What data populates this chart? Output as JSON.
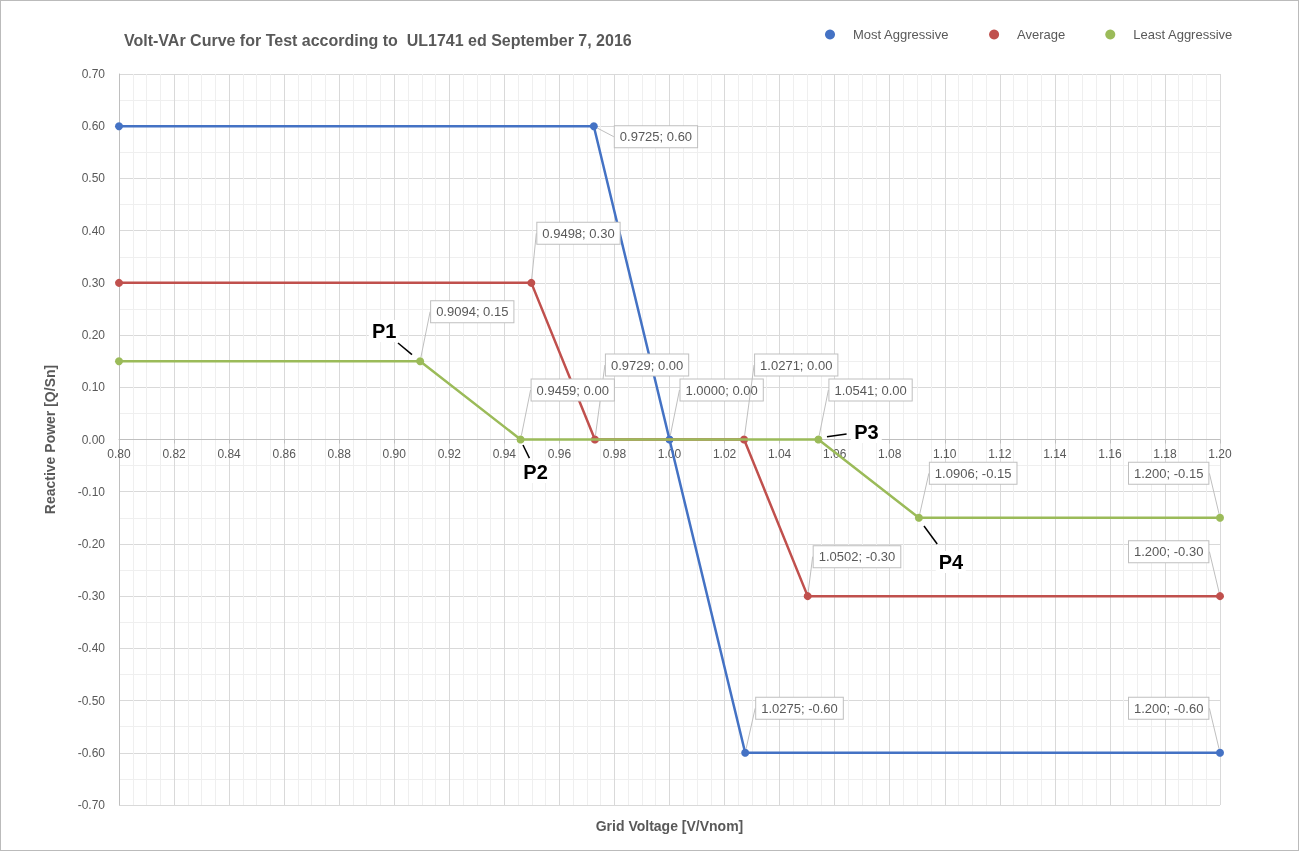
{
  "chart_data": {
    "type": "line",
    "title": "Volt-VAr Curve for Test according to  UL1741 ed September 7, 2016",
    "xlabel": "Grid Voltage [V/Vnom]",
    "ylabel": "Reactive Power [Q/Sn]",
    "xlim": [
      0.8,
      1.2
    ],
    "ylim": [
      -0.7,
      0.7
    ],
    "xticks": [
      {
        "value": 0.8,
        "label": "0.80"
      },
      {
        "value": 0.82,
        "label": "0.82"
      },
      {
        "value": 0.84,
        "label": "0.84"
      },
      {
        "value": 0.86,
        "label": "0.86"
      },
      {
        "value": 0.88,
        "label": "0.88"
      },
      {
        "value": 0.9,
        "label": "0.90"
      },
      {
        "value": 0.92,
        "label": "0.92"
      },
      {
        "value": 0.94,
        "label": "0.94"
      },
      {
        "value": 0.96,
        "label": "0.96"
      },
      {
        "value": 0.98,
        "label": "0.98"
      },
      {
        "value": 1.0,
        "label": "1.00"
      },
      {
        "value": 1.02,
        "label": "1.02"
      },
      {
        "value": 1.04,
        "label": "1.04"
      },
      {
        "value": 1.06,
        "label": "1.06"
      },
      {
        "value": 1.08,
        "label": "1.08"
      },
      {
        "value": 1.1,
        "label": "1.10"
      },
      {
        "value": 1.12,
        "label": "1.12"
      },
      {
        "value": 1.14,
        "label": "1.14"
      },
      {
        "value": 1.16,
        "label": "1.16"
      },
      {
        "value": 1.18,
        "label": "1.18"
      },
      {
        "value": 1.2,
        "label": "1.20"
      }
    ],
    "yticks": [
      {
        "value": -0.7,
        "label": "-0.70"
      },
      {
        "value": -0.6,
        "label": "-0.60"
      },
      {
        "value": -0.5,
        "label": "-0.50"
      },
      {
        "value": -0.4,
        "label": "-0.40"
      },
      {
        "value": -0.3,
        "label": "-0.30"
      },
      {
        "value": -0.2,
        "label": "-0.20"
      },
      {
        "value": -0.1,
        "label": "-0.10"
      },
      {
        "value": 0,
        "label": "0.00"
      },
      {
        "value": 0.1,
        "label": "0.10"
      },
      {
        "value": 0.2,
        "label": "0.20"
      },
      {
        "value": 0.3,
        "label": "0.30"
      },
      {
        "value": 0.4,
        "label": "0.40"
      },
      {
        "value": 0.5,
        "label": "0.50"
      },
      {
        "value": 0.6,
        "label": "0.60"
      },
      {
        "value": 0.7,
        "label": "0.70"
      }
    ],
    "grid": true,
    "legend": "top right",
    "marker": "circle",
    "line_style": "solid",
    "series": [
      {
        "name": "Most Aggressive",
        "color": "#4472c4",
        "x": [
          0.8,
          0.9725,
          1.0,
          1.0275,
          1.2
        ],
        "values": [
          0.6,
          0.6,
          0.0,
          -0.6,
          -0.6
        ],
        "value_labels": [
          null,
          "0.9725; 0.60",
          "1.0000; 0.00",
          "1.0275; -0.60",
          "1.200; -0.60"
        ]
      },
      {
        "name": "Average",
        "color": "#c0504d",
        "x": [
          0.8,
          0.9498,
          0.9729,
          1.0271,
          1.0502,
          1.2
        ],
        "values": [
          0.3,
          0.3,
          0.0,
          0.0,
          -0.3,
          -0.3
        ],
        "value_labels": [
          null,
          "0.9498; 0.30",
          "0.9729; 0.00",
          "1.0271; 0.00",
          "1.0502; -0.30",
          "1.200; -0.30"
        ]
      },
      {
        "name": "Least Aggressive",
        "color": "#9bbb59",
        "x": [
          0.8,
          0.9094,
          0.9459,
          1.0541,
          1.0906,
          1.2
        ],
        "values": [
          0.15,
          0.15,
          0.0,
          0.0,
          -0.15,
          -0.15
        ],
        "value_labels": [
          null,
          "0.9094; 0.15",
          "0.9459; 0.00",
          "1.0541; 0.00",
          "1.0906; -0.15",
          "1.200; -0.15"
        ]
      }
    ],
    "annotations": [
      {
        "text": "P1",
        "x": 0.9094,
        "y": 0.15
      },
      {
        "text": "P2",
        "x": 0.9459,
        "y": 0.0
      },
      {
        "text": "P3",
        "x": 1.0541,
        "y": 0.0
      },
      {
        "text": "P4",
        "x": 1.0906,
        "y": -0.15
      }
    ]
  }
}
